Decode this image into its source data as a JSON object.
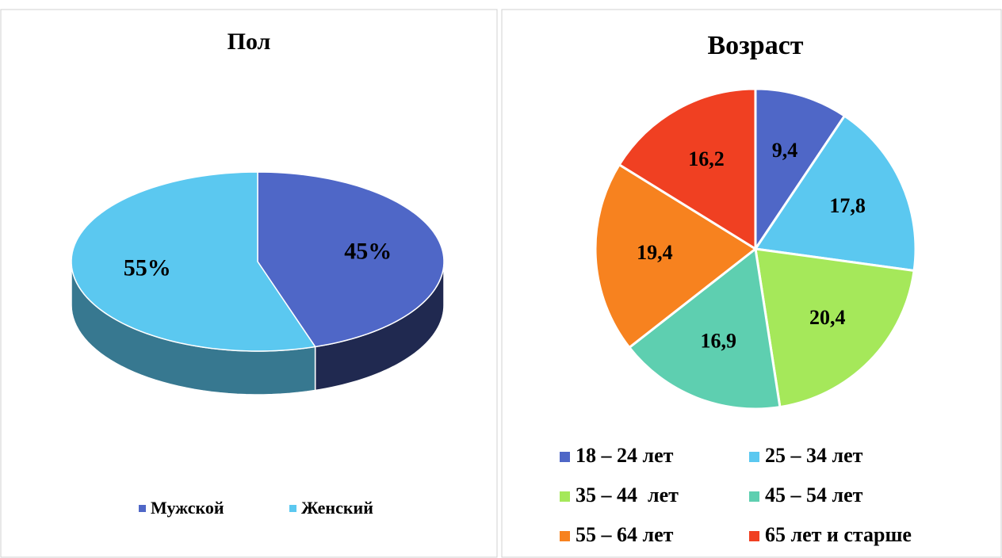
{
  "chart_data": [
    {
      "type": "pie3d",
      "title": "Пол",
      "categories": [
        "Мужской",
        "Женский"
      ],
      "values": [
        45,
        55
      ],
      "value_labels": [
        "45%",
        "55%"
      ],
      "colors": [
        "#4f67c7",
        "#5bc8f0"
      ],
      "legend": "bottom"
    },
    {
      "type": "pie",
      "title": "Возраст",
      "categories": [
        "18 – 24 лет",
        "25 – 34 лет",
        "35 – 44  лет",
        "45 – 54 лет",
        "55 – 64 лет",
        "65 лет и старше"
      ],
      "values": [
        9.4,
        17.8,
        20.4,
        16.9,
        19.4,
        16.2
      ],
      "value_labels": [
        "9,4",
        "17,8",
        "20,4",
        "16,9",
        "19,4",
        "16,2"
      ],
      "colors": [
        "#4f67c7",
        "#5bc8f0",
        "#a5e85a",
        "#5ecfb0",
        "#f7821f",
        "#f04022"
      ],
      "legend": "bottom"
    }
  ]
}
